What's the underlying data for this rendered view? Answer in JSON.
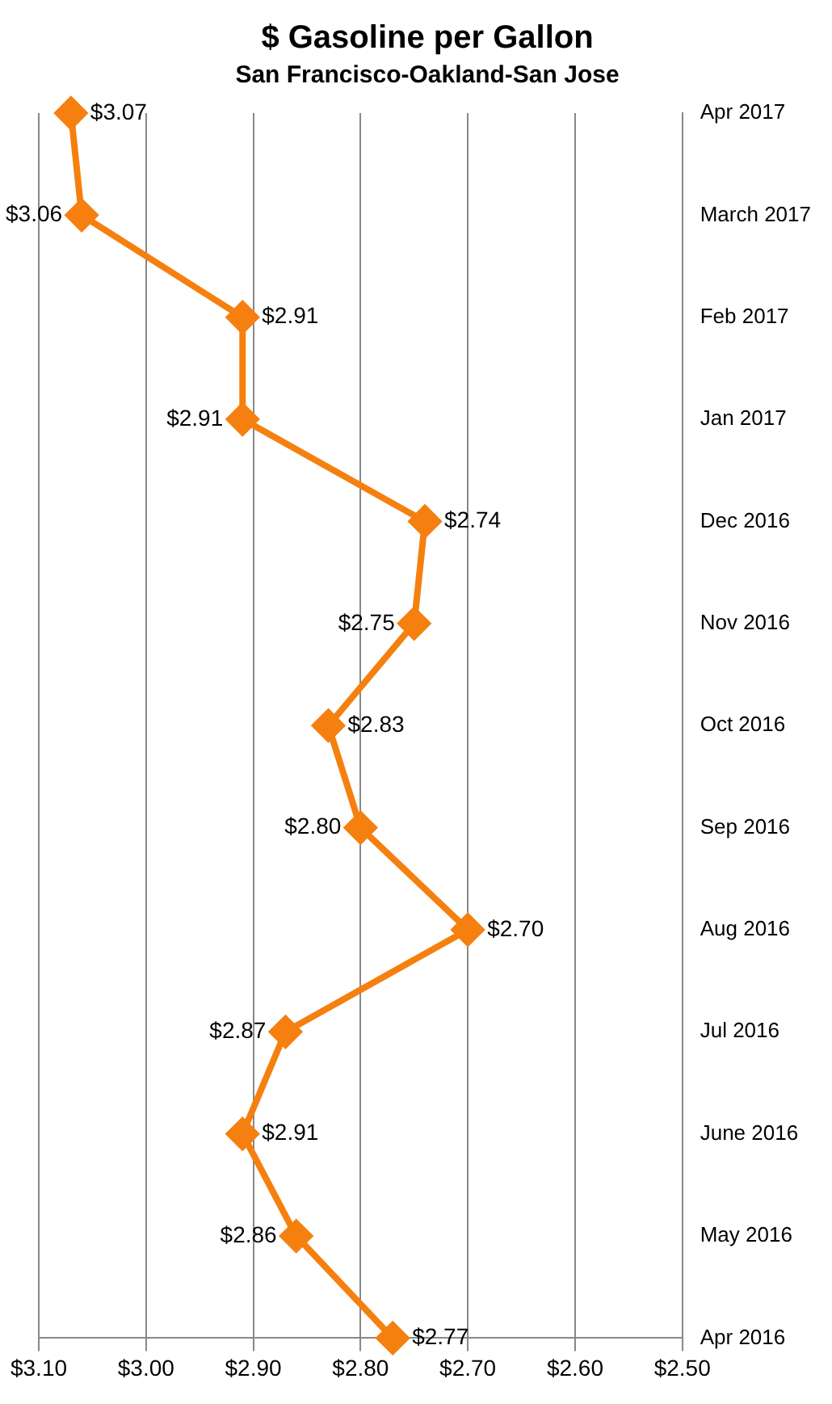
{
  "chart_data": {
    "type": "line",
    "title": "$ Gasoline per Gallon",
    "subtitle": "San Francisco-Oakland-San Jose",
    "orientation": "horizontal",
    "categories": [
      "Apr 2017",
      "March 2017",
      "Feb 2017",
      "Jan 2017",
      "Dec 2016",
      "Nov 2016",
      "Oct 2016",
      "Sep 2016",
      "Aug 2016",
      "Jul 2016",
      "June 2016",
      "May 2016",
      "Apr 2016"
    ],
    "series": [
      {
        "color": "#f5800f",
        "values": [
          3.07,
          3.06,
          2.91,
          2.91,
          2.74,
          2.75,
          2.83,
          2.8,
          2.7,
          2.87,
          2.91,
          2.86,
          2.77
        ],
        "value_labels": [
          "$3.07",
          "$3.06",
          "$2.91",
          "$2.91",
          "$2.74",
          "$2.75",
          "$2.83",
          "$2.80",
          "$2.70",
          "$2.87",
          "$2.91",
          "$2.86",
          "$2.77"
        ]
      }
    ],
    "xlim": [
      3.1,
      2.5
    ],
    "xticks": [
      {
        "value": 3.1,
        "label": "$3.10"
      },
      {
        "value": 3.0,
        "label": "$3.00"
      },
      {
        "value": 2.9,
        "label": "$2.90"
      },
      {
        "value": 2.8,
        "label": "$2.80"
      },
      {
        "value": 2.7,
        "label": "$2.70"
      },
      {
        "value": 2.6,
        "label": "$2.60"
      },
      {
        "value": 2.5,
        "label": "$2.50"
      }
    ],
    "grid": "x",
    "legend": false,
    "marker": "diamond",
    "line_style": "solid"
  }
}
